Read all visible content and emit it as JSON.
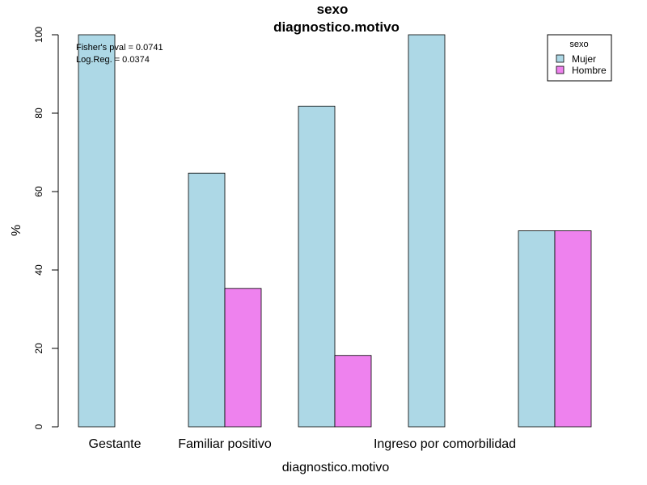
{
  "chart_data": {
    "type": "bar",
    "title": "sexo",
    "subtitle": "diagnostico.motivo",
    "xlabel": "diagnostico.motivo",
    "ylabel": "%",
    "ylim": [
      0,
      100
    ],
    "yticks": [
      0,
      20,
      40,
      60,
      80,
      100
    ],
    "categories": [
      "Gestante",
      "Familiar positivo",
      "",
      "Ingreso por comorbilidad",
      ""
    ],
    "series": [
      {
        "name": "Mujer",
        "color": "#add8e6",
        "values": [
          100,
          64.7,
          81.8,
          100,
          50
        ]
      },
      {
        "name": "Hombre",
        "color": "#ee82ee",
        "values": [
          0,
          35.3,
          18.2,
          0,
          50
        ]
      }
    ],
    "legend": {
      "title": "sexo",
      "placement": "top-right"
    },
    "annotations": [
      "Fisher's pval = 0.0741",
      "Log.Reg. = 0.0374"
    ],
    "grid": false
  }
}
